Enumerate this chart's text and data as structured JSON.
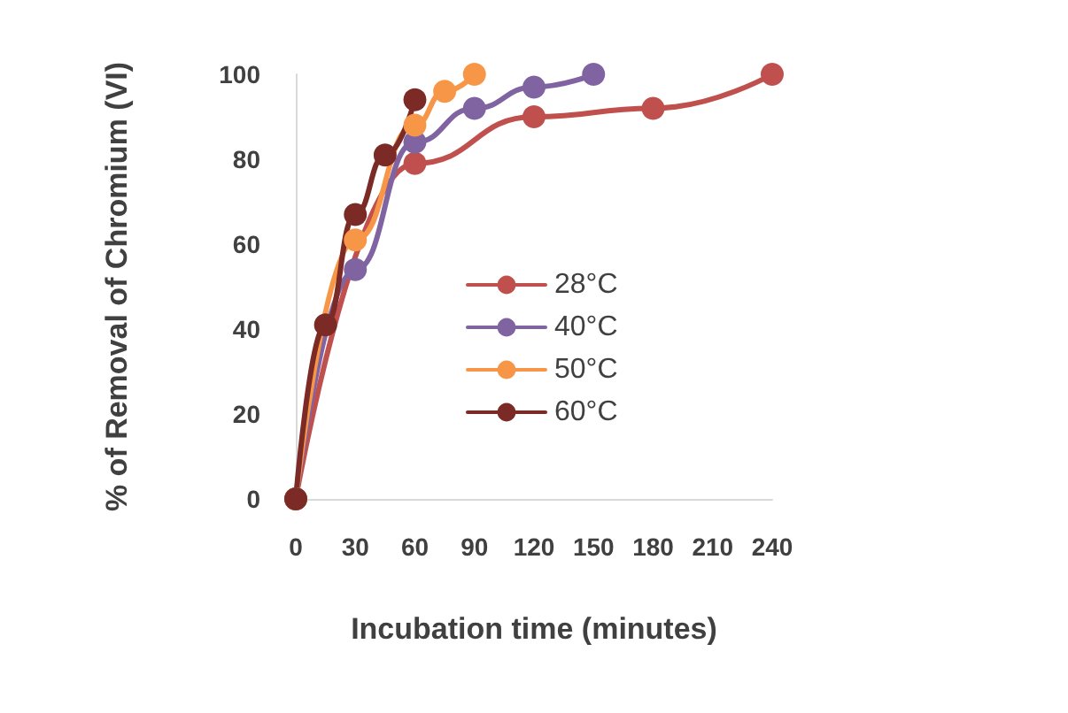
{
  "chart_data": {
    "type": "line",
    "xlabel": "Incubation time (minutes)",
    "ylabel": "% of Removal of Chromium (VI)",
    "xlim": [
      0,
      240
    ],
    "xticks": [
      0,
      30,
      60,
      90,
      120,
      150,
      180,
      210,
      240
    ],
    "ylim": [
      0,
      100
    ],
    "yticks": [
      0,
      20,
      40,
      60,
      80,
      100
    ],
    "series": [
      {
        "name": "28°C",
        "color": "#c0504d",
        "x": [
          0,
          60,
          120,
          180,
          240
        ],
        "values": [
          0,
          79,
          90,
          92,
          100
        ]
      },
      {
        "name": "40°C",
        "color": "#8064a2",
        "x": [
          0,
          30,
          60,
          90,
          120,
          150
        ],
        "values": [
          0,
          54,
          84,
          92,
          97,
          100
        ]
      },
      {
        "name": "50°C",
        "color": "#f79646",
        "x": [
          0,
          30,
          60,
          75,
          90
        ],
        "values": [
          0,
          61,
          88,
          96,
          100
        ]
      },
      {
        "name": "60°C",
        "color": "#7b2a26",
        "x": [
          0,
          15,
          30,
          45,
          60
        ],
        "values": [
          0,
          41,
          67,
          81,
          94
        ]
      }
    ],
    "grid": false,
    "legend": "right",
    "marker": "circle",
    "line_style": "solid"
  }
}
